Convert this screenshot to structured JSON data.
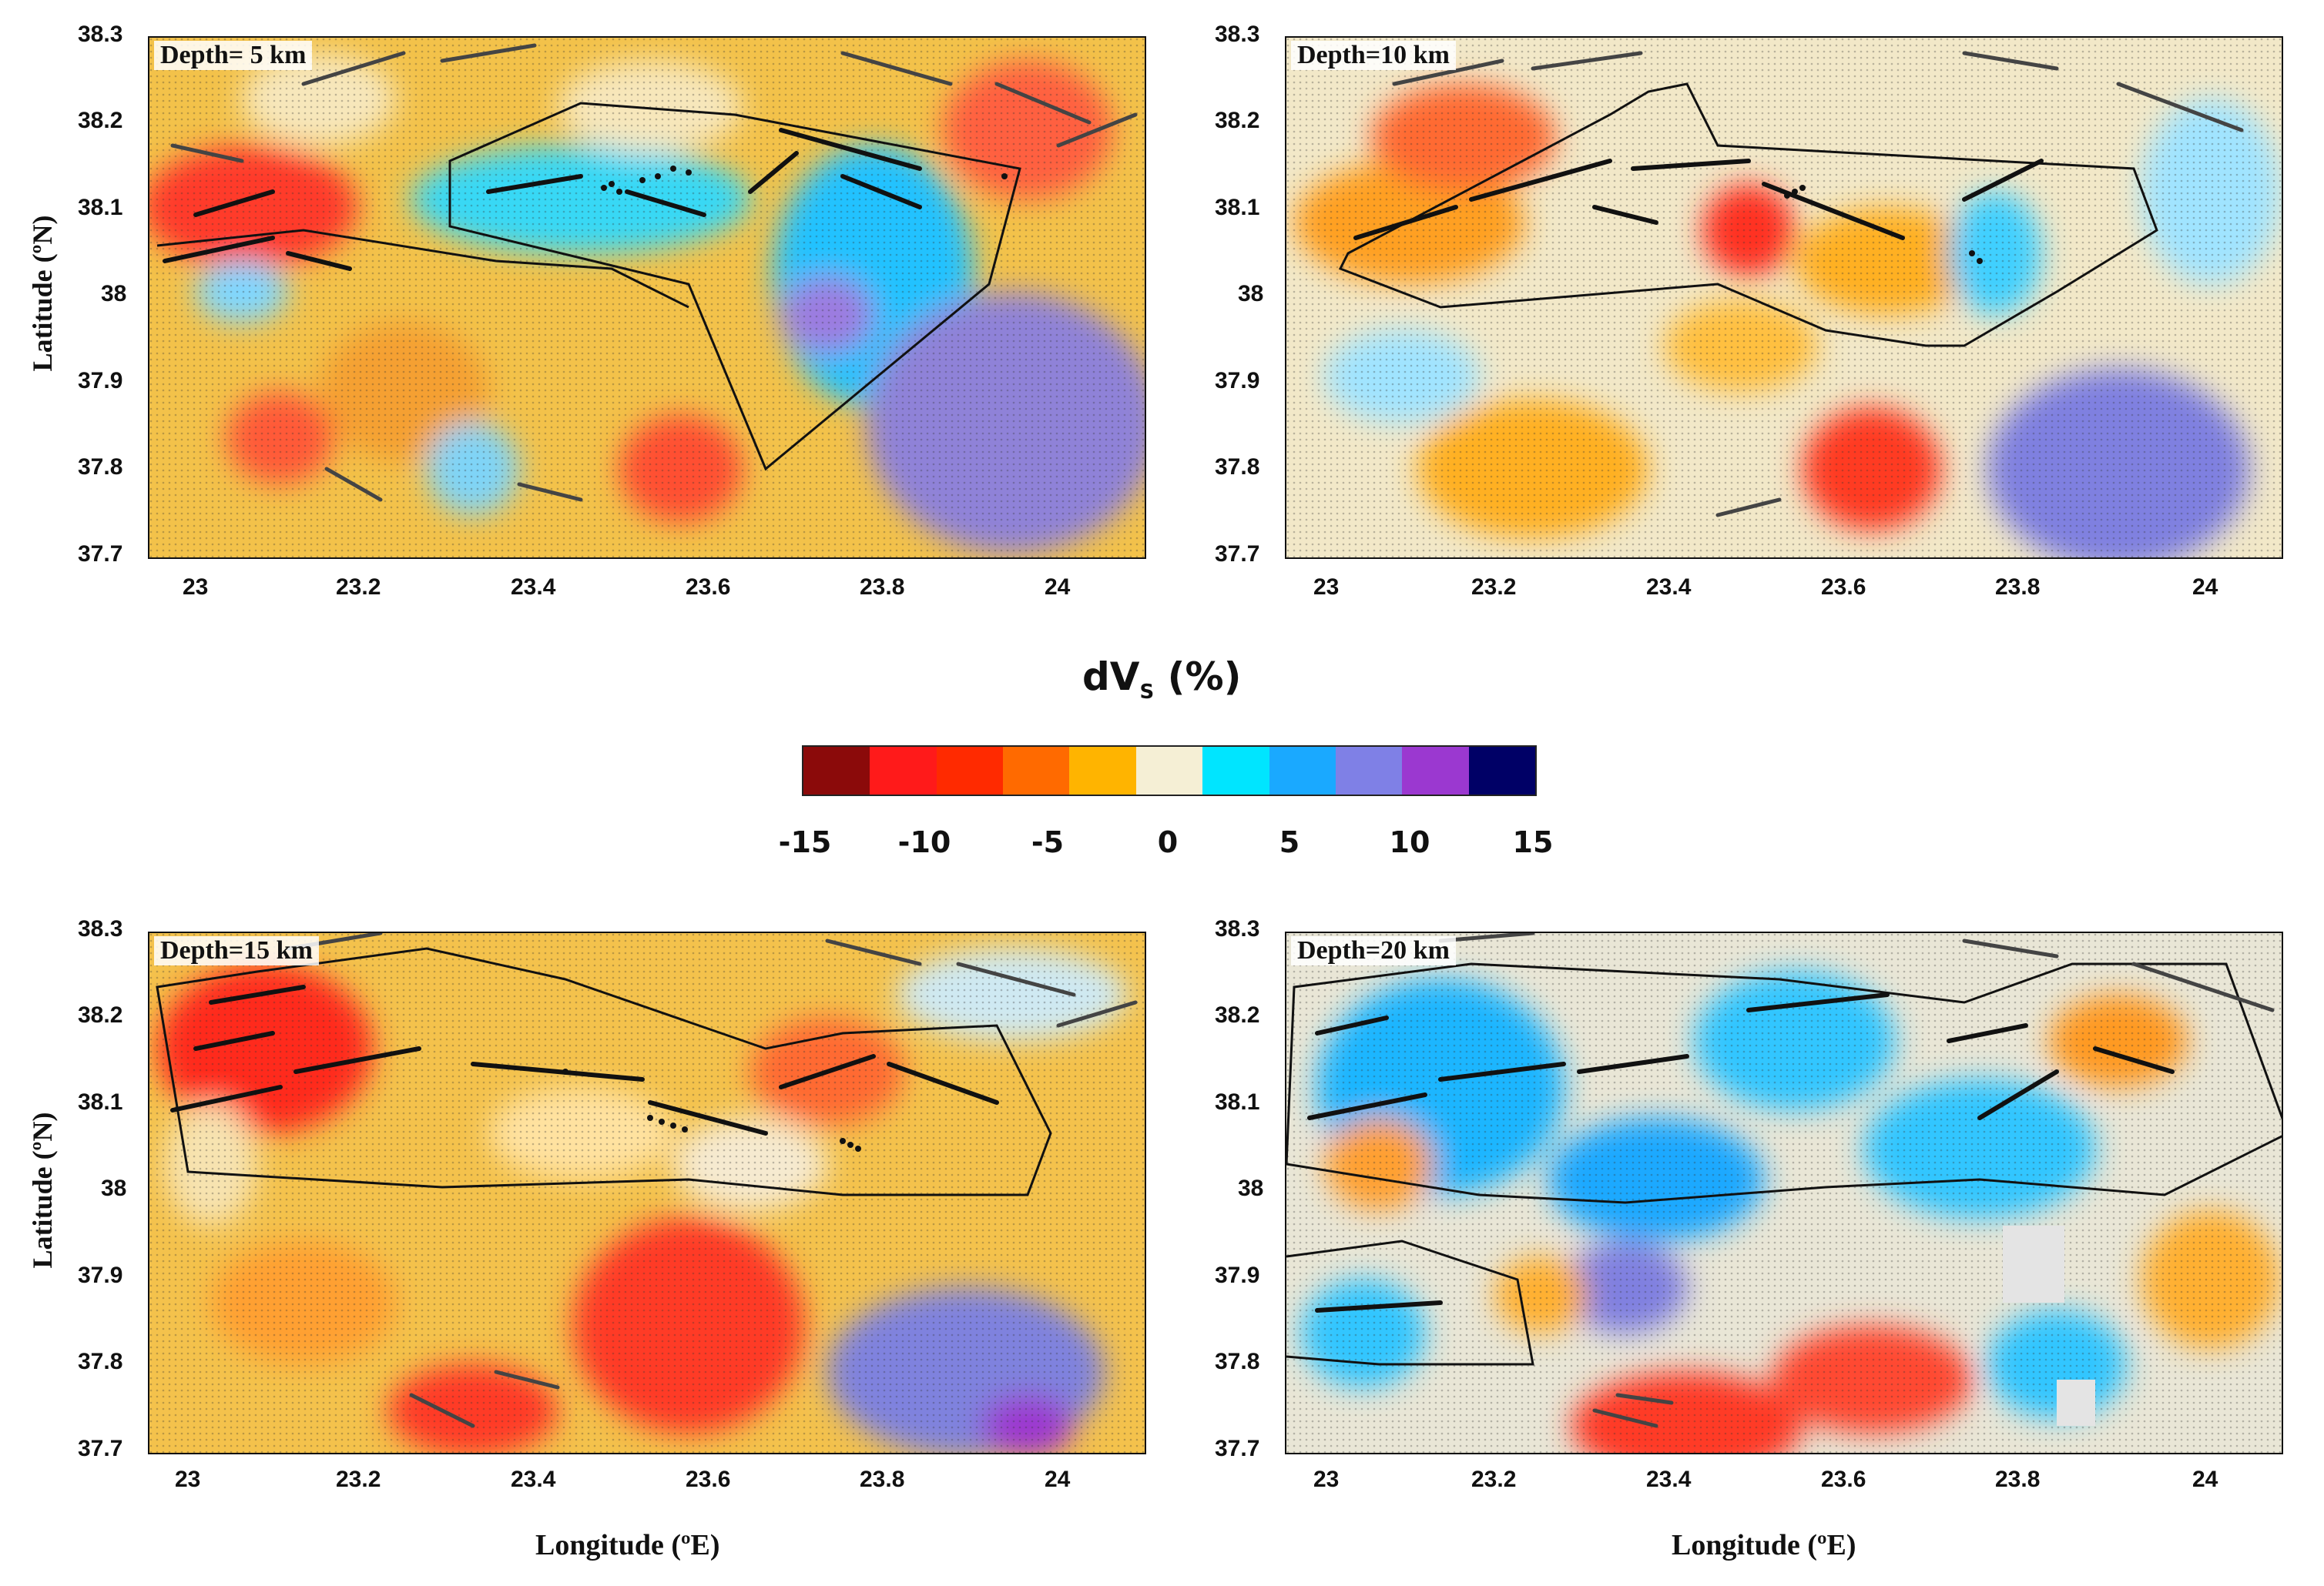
{
  "panels": [
    {
      "id": "p5",
      "label": "Depth= 5 km"
    },
    {
      "id": "p10",
      "label": "Depth=10 km"
    },
    {
      "id": "p15",
      "label": "Depth=15 km"
    },
    {
      "id": "p20",
      "label": "Depth=20 km"
    }
  ],
  "axes": {
    "latitude_label": "Latitude (ºN)",
    "longitude_label": "Longitude (ºE)",
    "lat_ticks": [
      "38.3",
      "38.2",
      "38.1",
      "38",
      "37.9",
      "37.8",
      "37.7"
    ],
    "lon_ticks": [
      "23",
      "23.2",
      "23.4",
      "23.6",
      "23.8",
      "24"
    ],
    "lat_range": [
      37.7,
      38.3
    ],
    "lon_range": [
      22.95,
      24.1
    ]
  },
  "colorbar": {
    "title_main": "dV",
    "title_sub": "S",
    "title_unit": " (%)",
    "ticks": [
      "-15",
      "-10",
      "-5",
      "0",
      "5",
      "10",
      "15"
    ],
    "colors": [
      "#8b0a0a",
      "#ff1a1a",
      "#ff2a00",
      "#ff6a00",
      "#ffb400",
      "#f5efd5",
      "#00e5ff",
      "#1aa9ff",
      "#7f80e6",
      "#9b38d0",
      "#000066"
    ]
  }
}
